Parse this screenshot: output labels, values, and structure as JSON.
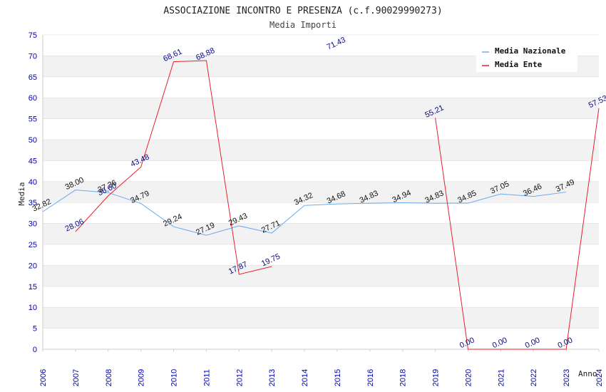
{
  "chart_data": {
    "type": "line",
    "title": "ASSOCIAZIONE INCONTRO E PRESENZA (c.f.90029990273)",
    "subtitle": "Media Importi",
    "ylabel": "Media",
    "xlabel": "Anno",
    "ylim": [
      0,
      75
    ],
    "yticks": [
      0,
      5,
      10,
      15,
      20,
      25,
      30,
      35,
      40,
      45,
      50,
      55,
      60,
      65,
      70,
      75
    ],
    "categories": [
      "2006",
      "2007",
      "2008",
      "2009",
      "2010",
      "2011",
      "2012",
      "2013",
      "2014",
      "2015",
      "2016",
      "2018",
      "2019",
      "2020",
      "2021",
      "2022",
      "2023",
      "2024"
    ],
    "grid": "horizontal bands",
    "legend_position": "top-right",
    "series": [
      {
        "name": "Media Nazionale",
        "color": "#6aaaf0",
        "values": [
          32.82,
          38.0,
          37.36,
          34.79,
          29.24,
          27.19,
          29.43,
          27.71,
          34.32,
          34.68,
          34.83,
          34.94,
          34.83,
          34.85,
          37.05,
          36.46,
          37.49,
          null
        ],
        "labels": [
          "32.82",
          "38.00",
          "37.36",
          "34.79",
          "29.24",
          "27.19",
          "29.43",
          "27.71",
          "34.32",
          "34.68",
          "34.83",
          "34.94",
          "34.83",
          "34.85",
          "37.05",
          "36.46",
          "37.49",
          ""
        ]
      },
      {
        "name": "Media Ente",
        "color": "#e8202a",
        "values": [
          null,
          28.06,
          36.6,
          43.48,
          68.61,
          68.88,
          17.87,
          19.75,
          null,
          71.43,
          null,
          null,
          55.21,
          0.0,
          0.0,
          0.0,
          0.0,
          57.53
        ],
        "labels": [
          "",
          "28.06",
          "36.60",
          "43.48",
          "68.61",
          "68.88",
          "17.87",
          "19.75",
          "",
          "71.43",
          "",
          "",
          "55.21",
          "0.00",
          "0.00",
          "0.00",
          "0.00",
          "57.53"
        ]
      }
    ]
  }
}
